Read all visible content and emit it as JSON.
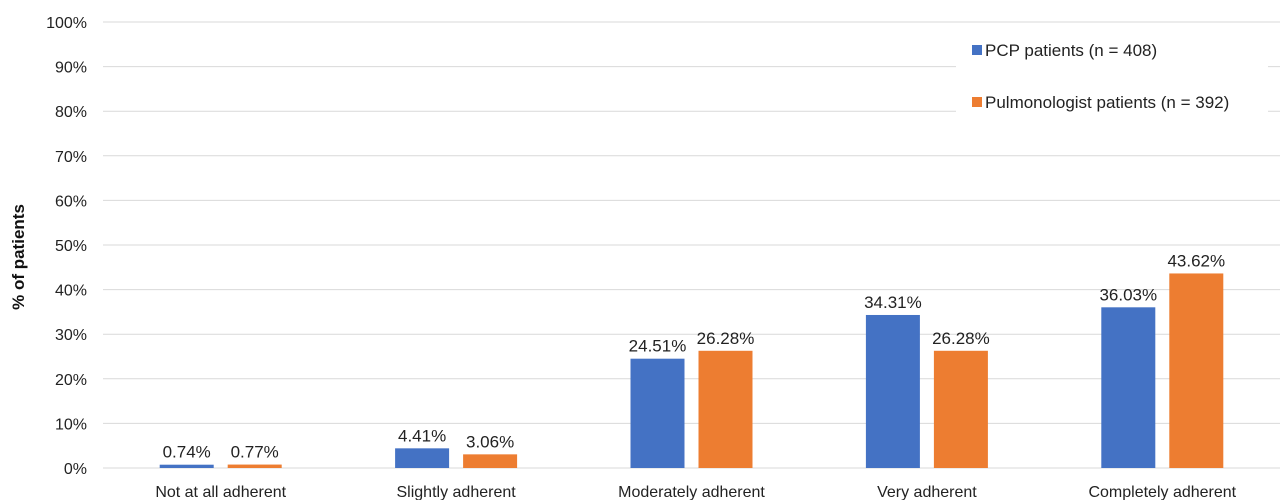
{
  "chart_data": {
    "type": "bar",
    "title": "",
    "xlabel": "",
    "ylabel": "% of patients",
    "ylim": [
      0,
      100
    ],
    "yticks": [
      "0%",
      "10%",
      "20%",
      "30%",
      "40%",
      "50%",
      "60%",
      "70%",
      "80%",
      "90%",
      "100%"
    ],
    "grid": true,
    "legend_position": "top-right",
    "categories": [
      "Not at all adherent",
      "Slightly adherent",
      "Moderately adherent",
      "Very adherent",
      "Completely adherent"
    ],
    "series": [
      {
        "name": "PCP patients (n = 408)",
        "color": "#4472c4",
        "values": [
          0.74,
          4.41,
          24.51,
          34.31,
          36.03
        ],
        "labels": [
          "0.74%",
          "4.41%",
          "24.51%",
          "34.31%",
          "36.03%"
        ]
      },
      {
        "name": "Pulmonologist patients (n = 392)",
        "color": "#ed7d31",
        "values": [
          0.77,
          3.06,
          26.28,
          26.28,
          43.62
        ],
        "labels": [
          "0.77%",
          "3.06%",
          "26.28%",
          "26.28%",
          "43.62%"
        ]
      }
    ]
  }
}
